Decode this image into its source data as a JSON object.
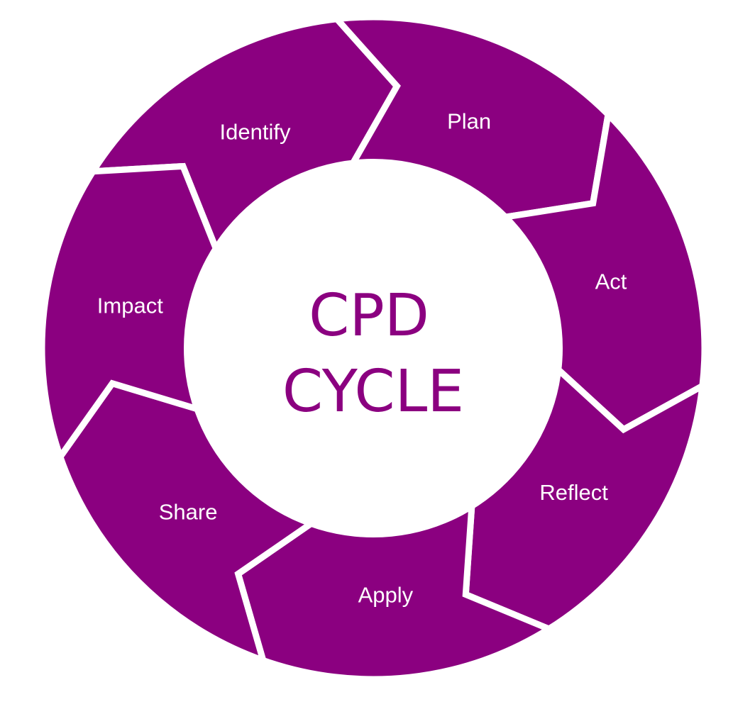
{
  "center": {
    "line1": "CPD",
    "line2": "CYCLE"
  },
  "steps": [
    {
      "label": "Identify"
    },
    {
      "label": "Plan"
    },
    {
      "label": "Act"
    },
    {
      "label": "Reflect"
    },
    {
      "label": "Apply"
    },
    {
      "label": "Share"
    },
    {
      "label": "Impact"
    }
  ],
  "colors": {
    "segment": "#8b0080",
    "center_text": "#8b0080",
    "background": "#ffffff"
  }
}
